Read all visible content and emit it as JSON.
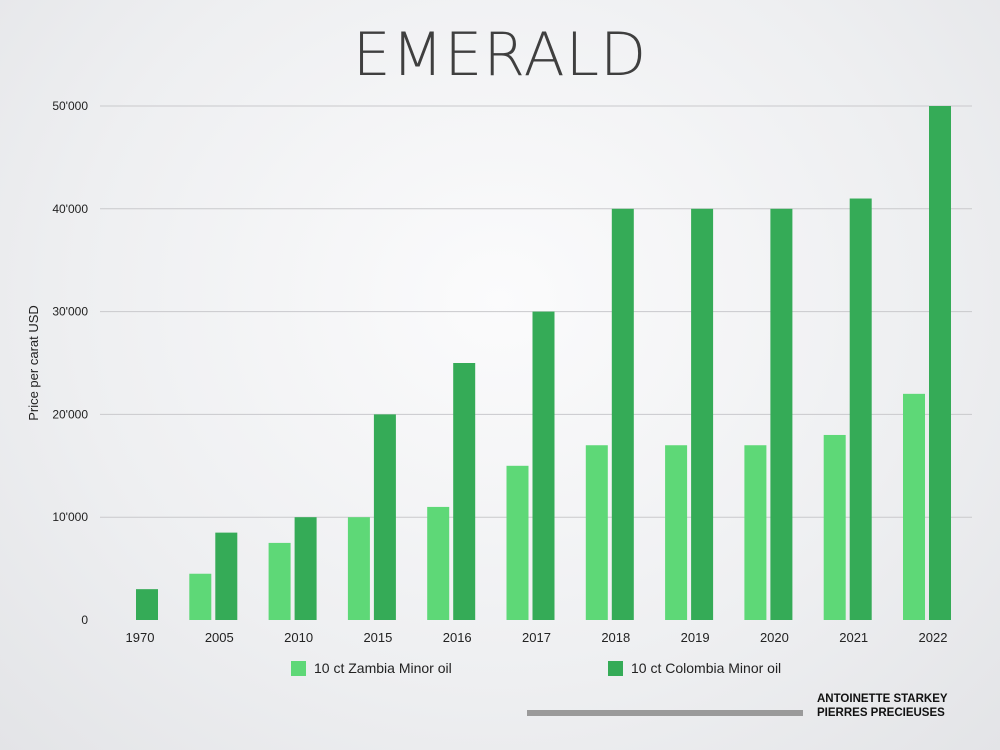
{
  "title": "EMERALD",
  "brand": {
    "line1": "ANTOINETTE STARKEY",
    "line2": "PIERRES PRECIEUSES"
  },
  "colors": {
    "zambia": "#5ed877",
    "colombia": "#35ab57",
    "gridline": "#c9c9cc"
  },
  "chart_data": {
    "type": "bar",
    "title": "EMERALD",
    "xlabel": "",
    "ylabel": "Price per carat USD",
    "ylim": [
      0,
      50000
    ],
    "yticks": [
      0,
      10000,
      20000,
      30000,
      40000,
      50000
    ],
    "ytick_labels": [
      "0",
      "10'000",
      "20'000",
      "30'000",
      "40'000",
      "50'000"
    ],
    "grid": true,
    "legend_position": "bottom",
    "categories": [
      "1970",
      "2005",
      "2010",
      "2015",
      "2016",
      "2017",
      "2018",
      "2019",
      "2020",
      "2021",
      "2022"
    ],
    "series": [
      {
        "name": "10 ct Zambia Minor oil",
        "color": "#5ed877",
        "values": [
          null,
          4500,
          7500,
          10000,
          11000,
          15000,
          17000,
          17000,
          17000,
          18000,
          22000
        ]
      },
      {
        "name": "10 ct Colombia Minor oil",
        "color": "#35ab57",
        "values": [
          3000,
          8500,
          10000,
          20000,
          25000,
          30000,
          40000,
          40000,
          40000,
          41000,
          50000
        ]
      }
    ]
  }
}
